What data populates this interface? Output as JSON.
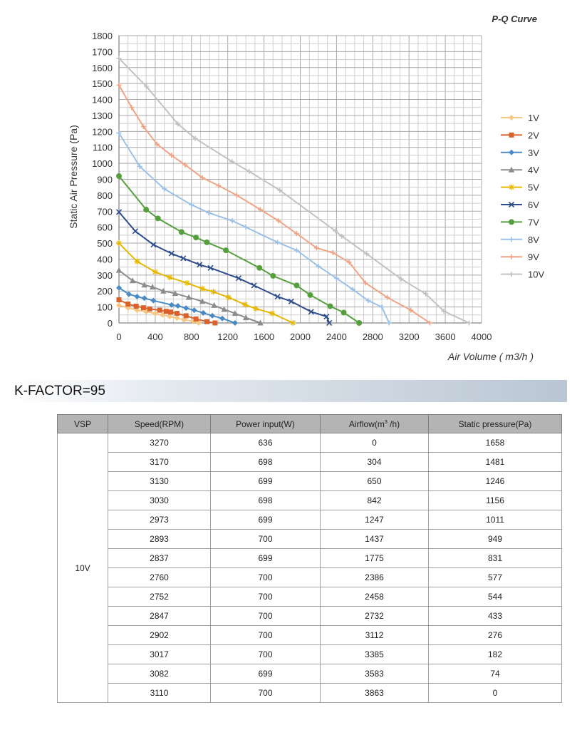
{
  "chart_data": {
    "type": "line",
    "title": "P-Q Curve",
    "xlabel": "Air Volume ( m3/h )",
    "ylabel": "Static Air Pressure  (Pa)",
    "xlim": [
      0,
      4000
    ],
    "ylim": [
      0,
      1800
    ],
    "x_ticks": [
      "0",
      "400",
      "800",
      "1200",
      "1600",
      "2000",
      "2400",
      "2800",
      "3200",
      "3600",
      "4000"
    ],
    "y_ticks": [
      "0",
      "100",
      "200",
      "300",
      "400",
      "500",
      "600",
      "700",
      "800",
      "900",
      "1000",
      "1100",
      "1200",
      "1300",
      "1400",
      "1500",
      "1600",
      "1700",
      "1800"
    ],
    "grid": true,
    "legend_position": "right",
    "series": [
      {
        "name": "1V",
        "color": "#f9c784",
        "marker": "diamond",
        "x": [
          0,
          100,
          200,
          300,
          400,
          480,
          560,
          640,
          720,
          820,
          880
        ],
        "y": [
          110,
          95,
          80,
          70,
          60,
          50,
          40,
          30,
          20,
          10,
          0
        ]
      },
      {
        "name": "2V",
        "color": "#d9622b",
        "marker": "square",
        "x": [
          0,
          100,
          190,
          270,
          340,
          450,
          520,
          570,
          640,
          740,
          850,
          970,
          1060
        ],
        "y": [
          145,
          118,
          105,
          95,
          88,
          80,
          73,
          68,
          60,
          45,
          25,
          8,
          0
        ]
      },
      {
        "name": "3V",
        "color": "#4a8ac4",
        "marker": "diamond",
        "x": [
          0,
          110,
          200,
          280,
          380,
          580,
          650,
          740,
          830,
          930,
          1030,
          1140,
          1280
        ],
        "y": [
          220,
          180,
          165,
          155,
          140,
          113,
          107,
          93,
          80,
          63,
          45,
          28,
          0
        ]
      },
      {
        "name": "4V",
        "color": "#8c8c8c",
        "marker": "triangle",
        "x": [
          0,
          150,
          280,
          370,
          490,
          620,
          770,
          920,
          1050,
          1160,
          1280,
          1400,
          1560
        ],
        "y": [
          330,
          265,
          238,
          225,
          200,
          185,
          160,
          135,
          110,
          85,
          60,
          33,
          0
        ]
      },
      {
        "name": "5V",
        "color": "#e6b800",
        "marker": "star",
        "x": [
          0,
          200,
          400,
          560,
          750,
          920,
          1040,
          1210,
          1390,
          1510,
          1690,
          1920
        ],
        "y": [
          500,
          385,
          320,
          285,
          250,
          215,
          195,
          160,
          115,
          90,
          60,
          0
        ]
      },
      {
        "name": "6V",
        "color": "#2e4d8c",
        "marker": "x",
        "x": [
          0,
          180,
          380,
          580,
          710,
          890,
          1010,
          1320,
          1490,
          1750,
          1900,
          2120,
          2290,
          2320
        ],
        "y": [
          695,
          575,
          490,
          435,
          405,
          365,
          345,
          280,
          235,
          165,
          135,
          70,
          40,
          0
        ]
      },
      {
        "name": "7V",
        "color": "#55a03c",
        "marker": "circle",
        "x": [
          0,
          300,
          430,
          690,
          850,
          970,
          1180,
          1550,
          1700,
          1960,
          2110,
          2330,
          2480,
          2650
        ],
        "y": [
          920,
          710,
          655,
          570,
          535,
          505,
          455,
          345,
          295,
          235,
          175,
          105,
          65,
          0
        ]
      },
      {
        "name": "8V",
        "color": "#9cc1e8",
        "marker": "plus",
        "x": [
          0,
          230,
          500,
          800,
          990,
          1250,
          1400,
          1750,
          1960,
          2200,
          2400,
          2580,
          2750,
          2900,
          2980
        ],
        "y": [
          1190,
          980,
          840,
          740,
          690,
          640,
          600,
          505,
          455,
          355,
          280,
          210,
          140,
          100,
          0
        ]
      },
      {
        "name": "9V",
        "color": "#f0a485",
        "marker": "plus",
        "x": [
          0,
          140,
          270,
          420,
          580,
          730,
          920,
          1100,
          1300,
          1560,
          1760,
          1960,
          2180,
          2360,
          2540,
          2720,
          2960,
          3220,
          3430
        ],
        "y": [
          1490,
          1350,
          1230,
          1120,
          1050,
          990,
          910,
          860,
          800,
          710,
          640,
          560,
          470,
          440,
          380,
          250,
          160,
          80,
          0
        ]
      },
      {
        "name": "10V",
        "color": "#c2c2c2",
        "marker": "plus",
        "x": [
          0,
          304,
          650,
          842,
          1247,
          1437,
          1775,
          2386,
          2458,
          2732,
          3112,
          3385,
          3583,
          3863
        ],
        "y": [
          1658,
          1481,
          1246,
          1156,
          1011,
          949,
          831,
          577,
          544,
          433,
          276,
          182,
          74,
          0
        ]
      }
    ]
  },
  "kfactor": "K-FACTOR=95",
  "table": {
    "headers": [
      "VSP",
      "Speed(RPM)",
      "Power input(W)",
      "Airflow(m",
      "3",
      " /h)",
      "Static pressure(Pa)"
    ],
    "vsp": "10V",
    "rows": [
      [
        "3270",
        "636",
        "0",
        "1658"
      ],
      [
        "3170",
        "698",
        "304",
        "1481"
      ],
      [
        "3130",
        "699",
        "650",
        "1246"
      ],
      [
        "3030",
        "698",
        "842",
        "1156"
      ],
      [
        "2973",
        "699",
        "1247",
        "1011"
      ],
      [
        "2893",
        "700",
        "1437",
        "949"
      ],
      [
        "2837",
        "699",
        "1775",
        "831"
      ],
      [
        "2760",
        "700",
        "2386",
        "577"
      ],
      [
        "2752",
        "700",
        "2458",
        "544"
      ],
      [
        "2847",
        "700",
        "2732",
        "433"
      ],
      [
        "2902",
        "700",
        "3112",
        "276"
      ],
      [
        "3017",
        "700",
        "3385",
        "182"
      ],
      [
        "3082",
        "699",
        "3583",
        "74"
      ],
      [
        "3110",
        "700",
        "3863",
        "0"
      ]
    ]
  }
}
